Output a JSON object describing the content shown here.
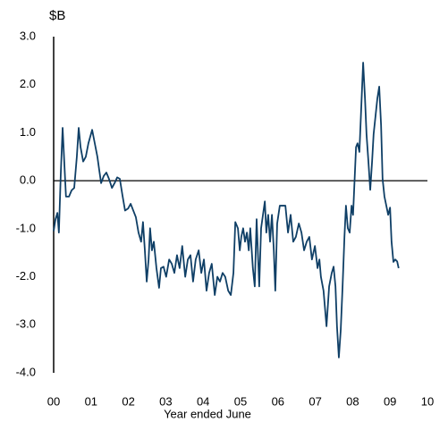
{
  "chart_data": {
    "type": "line",
    "y_unit_label": "$B",
    "xlabel": "Year ended June",
    "x": [
      0,
      0.05,
      0.1,
      0.14,
      0.19,
      0.24,
      0.29,
      0.33,
      0.41,
      0.48,
      0.55,
      0.62,
      0.67,
      0.72,
      0.79,
      0.86,
      0.93,
      1.03,
      1.1,
      1.17,
      1.22,
      1.27,
      1.34,
      1.41,
      1.48,
      1.56,
      1.63,
      1.7,
      1.77,
      1.84,
      1.91,
      1.99,
      2.06,
      2.13,
      2.2,
      2.27,
      2.34,
      2.39,
      2.44,
      2.49,
      2.54,
      2.58,
      2.63,
      2.68,
      2.75,
      2.82,
      2.87,
      2.94,
      3.01,
      3.09,
      3.16,
      3.23,
      3.3,
      3.37,
      3.44,
      3.52,
      3.59,
      3.66,
      3.73,
      3.8,
      3.88,
      3.95,
      4.02,
      4.09,
      4.16,
      4.23,
      4.31,
      4.38,
      4.45,
      4.52,
      4.59,
      4.67,
      4.74,
      4.81,
      4.86,
      4.93,
      4.98,
      5.02,
      5.07,
      5.12,
      5.17,
      5.22,
      5.26,
      5.33,
      5.38,
      5.43,
      5.5,
      5.55,
      5.6,
      5.65,
      5.69,
      5.74,
      5.79,
      5.84,
      5.89,
      5.93,
      5.98,
      6.05,
      6.12,
      6.2,
      6.27,
      6.34,
      6.41,
      6.48,
      6.56,
      6.63,
      6.7,
      6.77,
      6.84,
      6.91,
      6.99,
      7.06,
      7.11,
      7.15,
      7.22,
      7.3,
      7.37,
      7.44,
      7.49,
      7.54,
      7.58,
      7.63,
      7.68,
      7.73,
      7.78,
      7.82,
      7.87,
      7.92,
      7.97,
      8.01,
      8.09,
      8.13,
      8.18,
      8.23,
      8.28,
      8.33,
      8.37,
      8.42,
      8.47,
      8.52,
      8.56,
      8.61,
      8.66,
      8.71,
      8.76,
      8.8,
      8.85,
      8.9,
      8.95,
      9.0,
      9.04,
      9.09,
      9.14,
      9.19,
      9.23
    ],
    "series": [
      {
        "color": "#0f3f66",
        "values": [
          -1.05,
          -0.8,
          -0.67,
          -1.08,
          0.13,
          1.1,
          0.3,
          -0.33,
          -0.33,
          -0.2,
          -0.15,
          0.5,
          1.1,
          0.7,
          0.4,
          0.5,
          0.78,
          1.06,
          0.78,
          0.5,
          0.22,
          -0.05,
          0.1,
          0.17,
          0.04,
          -0.15,
          -0.05,
          0.07,
          0.04,
          -0.3,
          -0.62,
          -0.58,
          -0.48,
          -0.62,
          -0.76,
          -1.08,
          -1.27,
          -0.86,
          -1.45,
          -2.1,
          -1.64,
          -0.99,
          -1.45,
          -1.27,
          -1.82,
          -2.23,
          -1.82,
          -1.79,
          -2.0,
          -1.64,
          -1.73,
          -1.92,
          -1.55,
          -1.82,
          -1.36,
          -2.0,
          -1.64,
          -1.55,
          -2.1,
          -1.64,
          -1.45,
          -1.92,
          -1.64,
          -2.29,
          -1.92,
          -1.73,
          -2.38,
          -2.0,
          -2.1,
          -1.92,
          -2.0,
          -2.29,
          -2.38,
          -1.92,
          -0.86,
          -0.99,
          -1.45,
          -1.17,
          -0.99,
          -1.27,
          -1.08,
          -1.45,
          -0.99,
          -1.82,
          -2.2,
          -0.8,
          -2.2,
          -0.99,
          -0.71,
          -0.43,
          -1.08,
          -0.71,
          -1.27,
          -0.71,
          -1.45,
          -2.29,
          -0.89,
          -0.52,
          -0.52,
          -0.52,
          -1.08,
          -0.71,
          -1.27,
          -1.17,
          -0.89,
          -1.08,
          -1.45,
          -1.27,
          -1.17,
          -1.64,
          -1.36,
          -1.82,
          -1.64,
          -2.0,
          -2.29,
          -3.03,
          -2.2,
          -1.92,
          -1.79,
          -2.2,
          -3.03,
          -3.68,
          -3.12,
          -2.2,
          -1.17,
          -0.52,
          -0.99,
          -1.08,
          -0.52,
          -0.71,
          0.7,
          0.78,
          0.6,
          1.53,
          2.46,
          1.71,
          0.97,
          0.41,
          -0.19,
          0.41,
          0.97,
          1.34,
          1.71,
          1.96,
          1.15,
          0.04,
          -0.33,
          -0.52,
          -0.71,
          -0.56,
          -1.27,
          -1.69,
          -1.64,
          -1.68,
          -1.82
        ]
      }
    ],
    "xlim": [
      0,
      10
    ],
    "xticks": [
      {
        "value": 0,
        "label": "00"
      },
      {
        "value": 1,
        "label": "01"
      },
      {
        "value": 2,
        "label": "02"
      },
      {
        "value": 3,
        "label": "03"
      },
      {
        "value": 4,
        "label": "04"
      },
      {
        "value": 5,
        "label": "05"
      },
      {
        "value": 6,
        "label": "06"
      },
      {
        "value": 7,
        "label": "07"
      },
      {
        "value": 8,
        "label": "08"
      },
      {
        "value": 9,
        "label": "09"
      },
      {
        "value": 10,
        "label": "10"
      }
    ],
    "ylim": [
      -4,
      3
    ],
    "yticks": [
      {
        "value": 3,
        "label": "3.0"
      },
      {
        "value": 2,
        "label": "2.0"
      },
      {
        "value": 1,
        "label": "1.0"
      },
      {
        "value": 0,
        "label": "0.0"
      },
      {
        "value": -1,
        "label": "-1.0"
      },
      {
        "value": -2,
        "label": "-2.0"
      },
      {
        "value": -3,
        "label": "-3.0"
      },
      {
        "value": -4,
        "label": "-4.0"
      }
    ],
    "grid": false
  }
}
